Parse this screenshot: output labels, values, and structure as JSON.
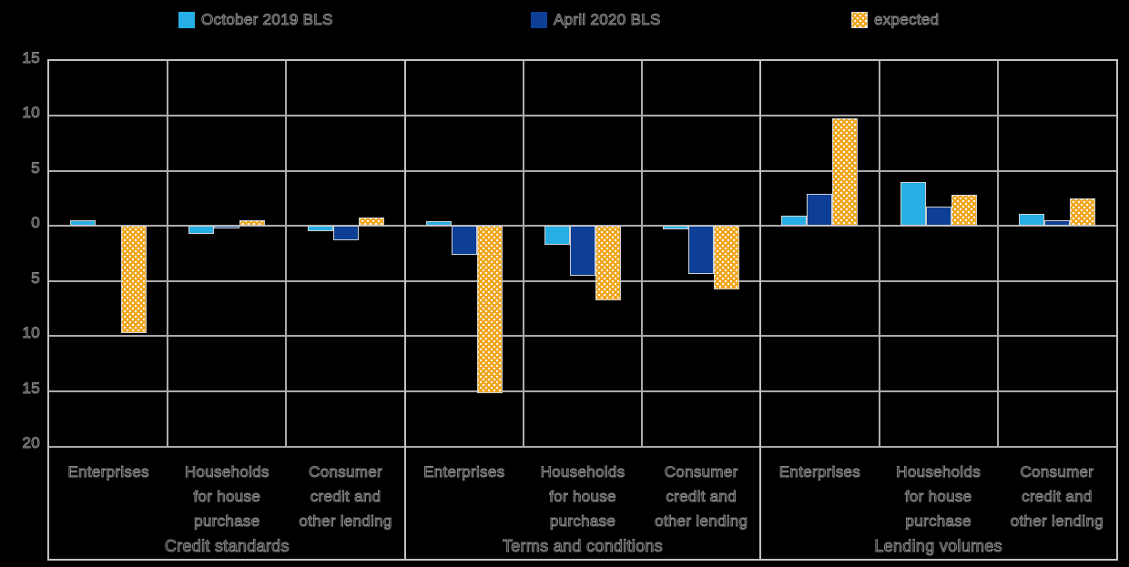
{
  "colors": {
    "background": "#000000",
    "cyan": "#27AEE4",
    "dark_blue": "#0C3F95",
    "yellow": "#F0A51C",
    "pattern_dot": "#FFFFFF",
    "grid": "#ABABAB",
    "frame": "#C2C2C2",
    "text_outline": "#8A8A8A"
  },
  "legend": [
    {
      "label": "October 2019 BLS",
      "swatch": "cyan"
    },
    {
      "label": "April 2020 BLS",
      "swatch": "dark_blue"
    },
    {
      "label": "expected",
      "swatch": "yellow_pattern"
    }
  ],
  "chart_data": {
    "type": "bar",
    "title": "",
    "grid": "on",
    "legend_position": "top",
    "y_axis": {
      "min": -20,
      "max": 15,
      "grid_step": 5,
      "tick_labels": [
        "15",
        "10",
        "5",
        "0",
        "5",
        "10",
        "15",
        "20"
      ],
      "tick_values": [
        15,
        10,
        5,
        0,
        -5,
        -10,
        -15,
        -20
      ]
    },
    "series_names": [
      "October 2019 BLS",
      "April 2020 BLS",
      "expected"
    ],
    "groups": [
      {
        "label": "Credit standards",
        "key": "credit-standards",
        "categories": [
          {
            "label": "Enterprises",
            "label_lines": [
              "Enterprises"
            ],
            "key": "enterprises",
            "values": [
              0.5,
              0,
              -9.7
            ]
          },
          {
            "label": "Households for house purchase",
            "label_lines": [
              "Households",
              "for house",
              "purchase"
            ],
            "key": "households-house-purchase",
            "values": [
              -0.7,
              -0.2,
              0.5
            ]
          },
          {
            "label": "Consumer credit and other lending",
            "label_lines": [
              "Consumer",
              "credit and",
              "other lending"
            ],
            "key": "consumer-credit",
            "values": [
              -0.5,
              -1.3,
              0.8
            ]
          }
        ]
      },
      {
        "label": "Terms and conditions",
        "key": "terms-and-conditions",
        "categories": [
          {
            "label": "Enterprises",
            "label_lines": [
              "Enterprises"
            ],
            "key": "enterprises",
            "values": [
              0.4,
              -2.6,
              -15.2
            ]
          },
          {
            "label": "Households for house purchase",
            "label_lines": [
              "Households",
              "for house",
              "purchase"
            ],
            "key": "households-house-purchase",
            "values": [
              -1.7,
              -4.5,
              -6.8
            ]
          },
          {
            "label": "Consumer credit and other lending",
            "label_lines": [
              "Consumer",
              "credit and",
              "other lending"
            ],
            "key": "consumer-credit",
            "values": [
              -0.3,
              -4.4,
              -5.8
            ]
          }
        ]
      },
      {
        "label": "Lending volumes",
        "key": "lending-volumes",
        "categories": [
          {
            "label": "Enterprises",
            "label_lines": [
              "Enterprises"
            ],
            "key": "enterprises",
            "values": [
              0.9,
              2.9,
              9.8
            ]
          },
          {
            "label": "Households for house purchase",
            "label_lines": [
              "Households",
              "for house",
              "purchase"
            ],
            "key": "households-house-purchase",
            "values": [
              4.0,
              1.8,
              2.8
            ]
          },
          {
            "label": "Consumer credit and other lending",
            "label_lines": [
              "Consumer",
              "credit and",
              "other lending"
            ],
            "key": "consumer-credit",
            "values": [
              1.1,
              0.5,
              2.5
            ]
          }
        ]
      }
    ]
  }
}
